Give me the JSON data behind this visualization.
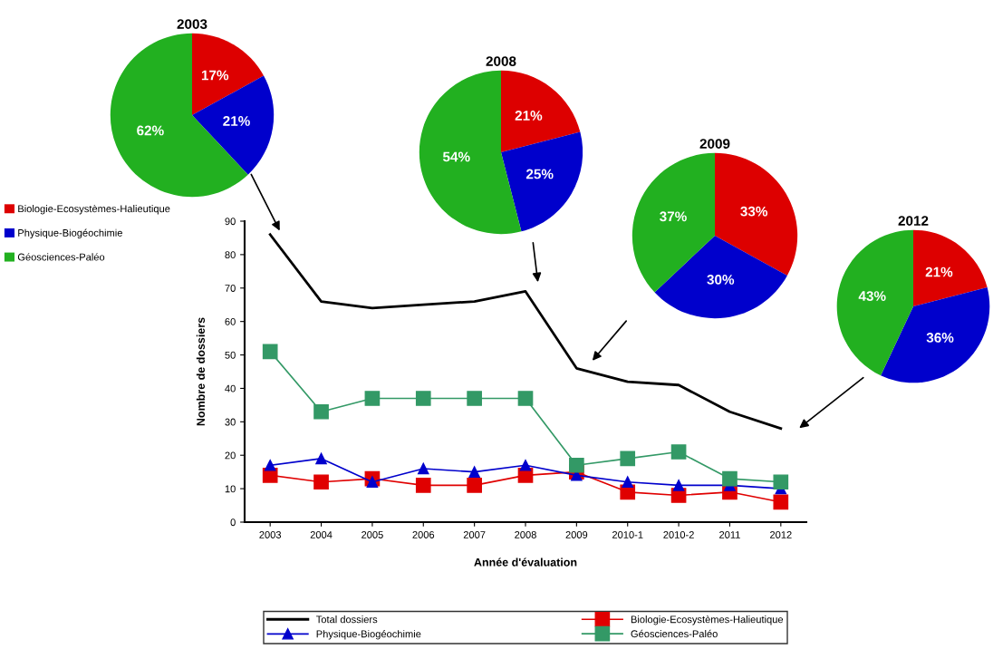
{
  "chart_data": [
    {
      "type": "line",
      "xlabel": "Année d'évaluation",
      "ylabel": "Nombre de dossiers",
      "categories": [
        "2003",
        "2004",
        "2005",
        "2006",
        "2007",
        "2008",
        "2009",
        "2010-1",
        "2010-2",
        "2011",
        "2012"
      ],
      "series": [
        {
          "name": "Total dossiers",
          "color": "#000000",
          "marker": "none",
          "values": [
            86,
            66,
            64,
            65,
            66,
            69,
            46,
            42,
            41,
            33,
            28
          ]
        },
        {
          "name": "Biologie-Ecosystèmes-Halieutique",
          "color": "#e00000",
          "marker": "square",
          "values": [
            14,
            12,
            13,
            11,
            11,
            14,
            15,
            9,
            8,
            9,
            6
          ]
        },
        {
          "name": "Physique-Biogéochimie",
          "color": "#0000cc",
          "marker": "triangle",
          "values": [
            17,
            19,
            12,
            16,
            15,
            17,
            14,
            12,
            11,
            11,
            10
          ]
        },
        {
          "name": "Géosciences-Paléo",
          "color": "#339966",
          "marker": "square",
          "values": [
            51,
            33,
            37,
            37,
            37,
            37,
            17,
            19,
            21,
            13,
            12
          ]
        }
      ],
      "ylim": [
        0,
        90
      ],
      "yticks": [
        0,
        10,
        20,
        30,
        40,
        50,
        60,
        70,
        80,
        90
      ],
      "grid": false,
      "legend": "bottom"
    },
    {
      "type": "pie",
      "title": "2003",
      "categories": [
        "Biologie-Ecosystèmes-Halieutique",
        "Physique-Biogéochimie",
        "Géosciences-Paléo"
      ],
      "values": [
        17,
        21,
        62
      ],
      "colors": [
        "#dd0000",
        "#0000cc",
        "#22b020"
      ],
      "value_labels": [
        "17%",
        "21%",
        "62%"
      ],
      "legend": "left"
    },
    {
      "type": "pie",
      "title": "2008",
      "categories": [
        null,
        null,
        null
      ],
      "values": [
        21,
        25,
        54
      ],
      "colors": [
        "#dd0000",
        "#0000cc",
        "#22b020"
      ],
      "value_labels": [
        "21%",
        "25%",
        "54%"
      ]
    },
    {
      "type": "pie",
      "title": "2009",
      "categories": [
        null,
        null,
        null
      ],
      "values": [
        33,
        30,
        37
      ],
      "colors": [
        "#dd0000",
        "#0000cc",
        "#22b020"
      ],
      "value_labels": [
        "33%",
        "30%",
        "37%"
      ]
    },
    {
      "type": "pie",
      "title": "2012",
      "categories": [
        null,
        null,
        null
      ],
      "values": [
        21,
        36,
        43
      ],
      "colors": [
        "#dd0000",
        "#0000cc",
        "#22b020"
      ],
      "value_labels": [
        "21%",
        "36%",
        "43%"
      ]
    }
  ]
}
